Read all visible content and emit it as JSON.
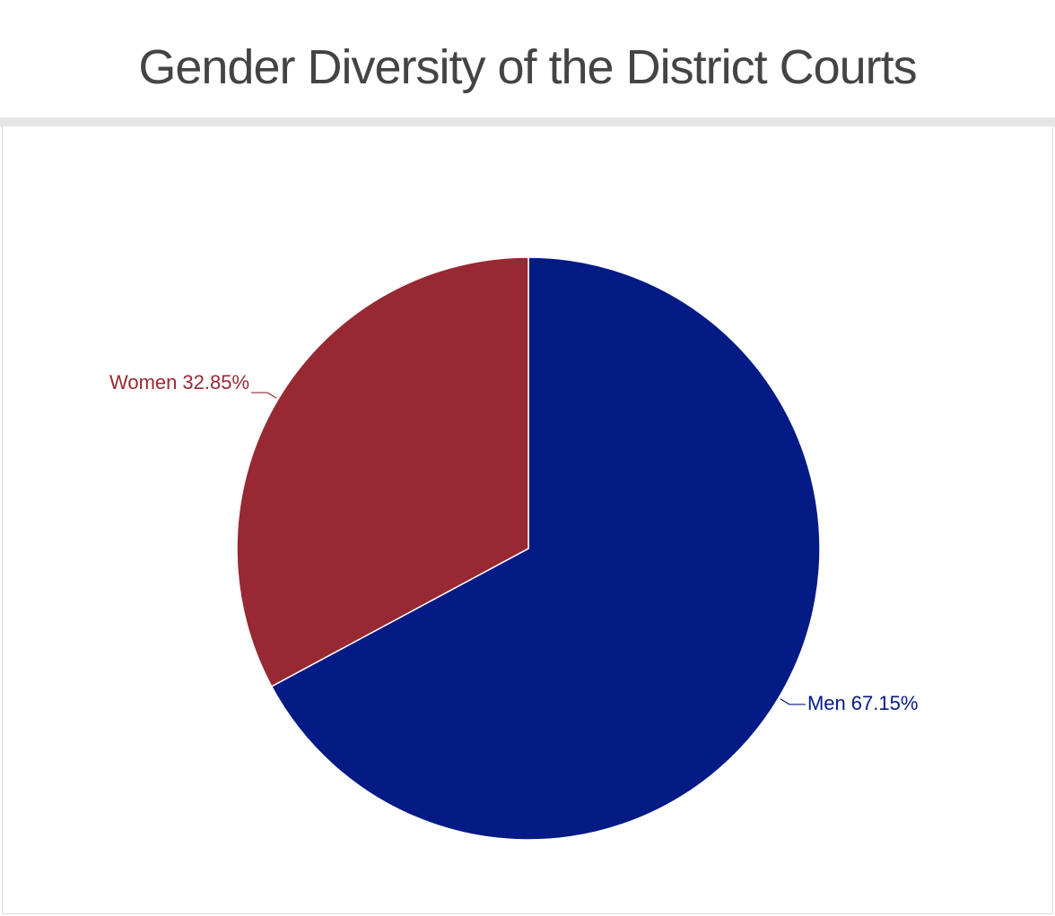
{
  "chart_data": {
    "type": "pie",
    "title": "Gender Diversity of the District Courts",
    "categories": [
      "Men",
      "Women"
    ],
    "values": [
      67.15,
      32.85
    ],
    "value_labels": [
      "67.15%",
      "32.85%"
    ],
    "colors": [
      "#041a85",
      "#982832"
    ]
  }
}
